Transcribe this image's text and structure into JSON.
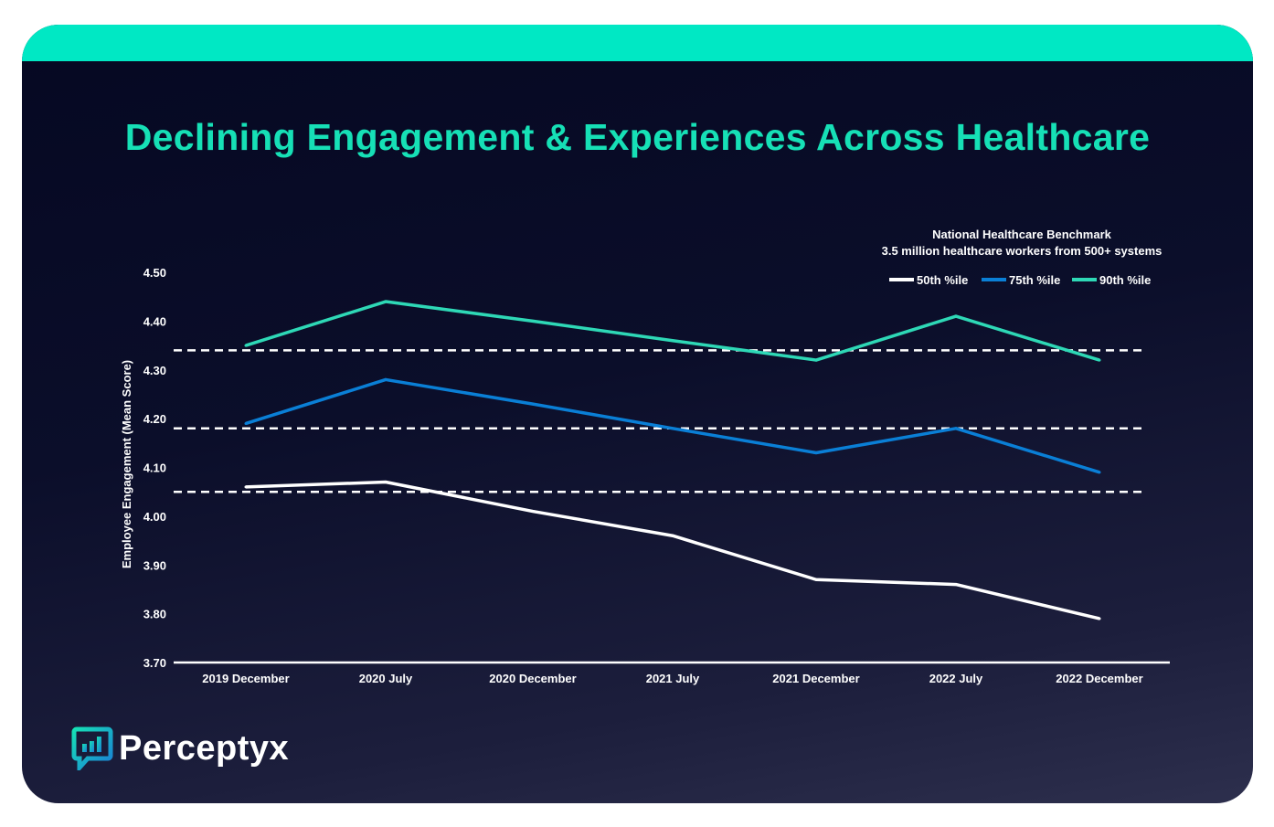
{
  "title": "Declining Engagement & Experiences Across Healthcare",
  "brand": {
    "name": "Perceptyx",
    "logo_icon": "chat-bar-chart-icon",
    "accent": "#00e8c4"
  },
  "chart_data": {
    "type": "line",
    "subtitle_line1": "National Healthcare Benchmark",
    "subtitle_line2": "3.5 million healthcare workers from 500+ systems",
    "ylabel": "Employee Engagement (Mean Score)",
    "xlabel": "",
    "ylim": [
      3.7,
      4.5
    ],
    "yticks": [
      "4.50",
      "4.40",
      "4.30",
      "4.20",
      "4.10",
      "4.00",
      "3.90",
      "3.80",
      "3.70"
    ],
    "categories": [
      "2019 December",
      "2020 July",
      "2020 December",
      "2021 July",
      "2021 December",
      "2022 July",
      "2022 December"
    ],
    "legend_position": "top-right",
    "grid": false,
    "series": [
      {
        "name": "50th %ile",
        "color": "#ffffff",
        "values": [
          4.06,
          4.07,
          4.01,
          3.96,
          3.87,
          3.86,
          3.79
        ],
        "reference": 4.05
      },
      {
        "name": "75th %ile",
        "color": "#0a7fd6",
        "values": [
          4.19,
          4.28,
          4.23,
          4.18,
          4.13,
          4.18,
          4.09
        ],
        "reference": 4.18
      },
      {
        "name": "90th %ile",
        "color": "#2ed8b6",
        "values": [
          4.35,
          4.44,
          4.4,
          4.36,
          4.32,
          4.41,
          4.32
        ],
        "reference": 4.34
      }
    ]
  }
}
